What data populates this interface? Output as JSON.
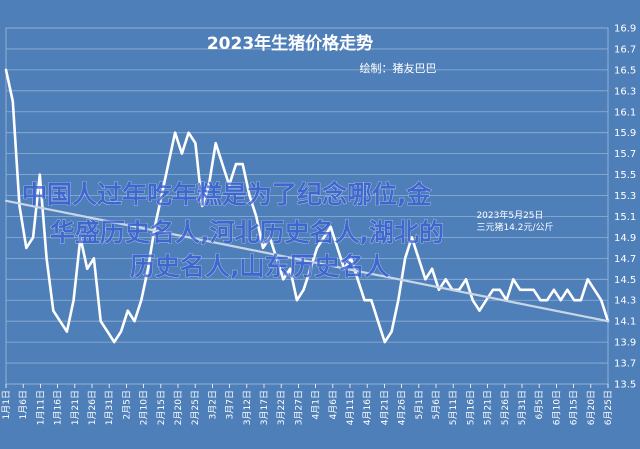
{
  "chart_data": {
    "type": "line",
    "title": "2023年生猪价格走势",
    "subtitle": "绘制：猪友巴巴",
    "annotation": {
      "date_label": "2023年5月25日",
      "note": "三元猪14.2元/公斤"
    },
    "y_ticks": [
      "16.9",
      "16.7",
      "16.5",
      "16.3",
      "16.1",
      "15.9",
      "15.7",
      "15.5",
      "15.3",
      "15.1",
      "14.9",
      "14.7",
      "14.5",
      "14.3",
      "14.1",
      "13.9",
      "13.7",
      "13.5"
    ],
    "ylim": [
      13.5,
      16.9
    ],
    "x_ticks": [
      "1月1日",
      "1月6日",
      "1月11日",
      "1月16日",
      "1月21日",
      "1月26日",
      "1月31日",
      "2月5日",
      "2月10日",
      "2月15日",
      "2月20日",
      "2月25日",
      "3月2日",
      "3月7日",
      "3月12日",
      "3月17日",
      "3月22日",
      "3月27日",
      "4月1日",
      "4月6日",
      "4月11日",
      "4月16日",
      "4月21日",
      "4月26日",
      "5月1日",
      "5月6日",
      "5月11日",
      "5月16日",
      "5月21日",
      "5月26日",
      "5月31日",
      "6月5日",
      "6月10日",
      "6月15日",
      "6月20日",
      "6月25日"
    ],
    "series": [
      {
        "values": [
          16.5,
          16.2,
          15.2,
          14.8,
          14.9,
          15.5,
          14.7,
          14.2,
          14.1,
          14.0,
          14.3,
          14.9,
          14.6,
          14.7,
          14.1,
          14.0,
          13.9,
          14.0,
          14.2,
          14.1,
          14.3,
          14.6,
          15.0,
          15.3,
          15.6,
          15.9,
          15.7,
          15.9,
          15.8,
          15.2,
          15.4,
          15.8,
          15.6,
          15.4,
          15.6,
          15.6,
          15.3,
          15.1,
          14.8,
          14.9,
          14.7,
          14.5,
          14.6,
          14.3,
          14.4,
          14.6,
          14.8,
          14.9,
          15.0,
          14.8,
          14.6,
          14.7,
          14.5,
          14.3,
          14.3,
          14.1,
          13.9,
          14.0,
          14.3,
          14.7,
          14.9,
          14.7,
          14.5,
          14.6,
          14.4,
          14.5,
          14.4,
          14.4,
          14.5,
          14.3,
          14.2,
          14.3,
          14.4,
          14.4,
          14.3,
          14.5,
          14.4,
          14.4,
          14.4,
          14.3,
          14.3,
          14.4,
          14.3,
          14.4,
          14.3,
          14.3,
          14.5,
          14.4,
          14.3,
          14.1
        ],
        "color": "#ffffff"
      },
      {
        "values": [
          15.25,
          14.1
        ],
        "color": "#c9d6e6"
      }
    ],
    "watermark": [
      "中国人过年吃年糕是为了纪念哪位,金",
      "华盛历史名人,河北历史名人,湖北的",
      "历史名人,山东历史名人"
    ]
  }
}
